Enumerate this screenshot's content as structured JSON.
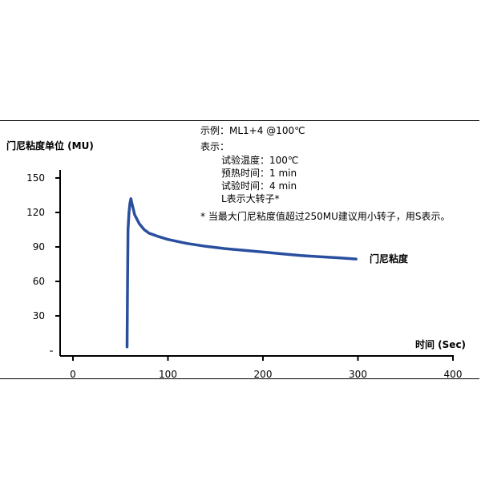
{
  "chart_data": {
    "type": "line",
    "ylabel": "门尼粘度单位  (MU)",
    "xlabel": "时间  (Sec)",
    "xlim": [
      0,
      400
    ],
    "ylim": [
      0,
      150
    ],
    "xticks": [
      0,
      100,
      200,
      300,
      400
    ],
    "yticks": [
      30,
      60,
      90,
      120,
      150
    ],
    "series": [
      {
        "name": "门尼粘度",
        "color": "#2a4f9e",
        "points": [
          [
            57,
            3
          ],
          [
            57.5,
            60
          ],
          [
            58,
            105
          ],
          [
            59,
            120
          ],
          [
            60,
            128
          ],
          [
            61,
            132
          ],
          [
            62,
            128
          ],
          [
            65,
            118
          ],
          [
            70,
            110
          ],
          [
            75,
            105
          ],
          [
            80,
            102
          ],
          [
            90,
            99
          ],
          [
            100,
            96.5
          ],
          [
            120,
            93
          ],
          [
            140,
            90.5
          ],
          [
            160,
            88.5
          ],
          [
            180,
            87
          ],
          [
            200,
            85.5
          ],
          [
            220,
            84
          ],
          [
            240,
            82.5
          ],
          [
            260,
            81.5
          ],
          [
            280,
            80.5
          ],
          [
            298,
            79.5
          ]
        ]
      }
    ],
    "annotation_lines": [
      "示例：ML1+4 @100℃",
      "表示：",
      "试验温度：100℃",
      "预热时间：1 min",
      "试验时间：4 min",
      "L表示大转子*",
      "*  当最大门尼粘度值超过250MU建议用小转子，用S表示。"
    ],
    "grid": false
  },
  "colors": {
    "line": "#2a4f9e",
    "axis": "#000000"
  }
}
